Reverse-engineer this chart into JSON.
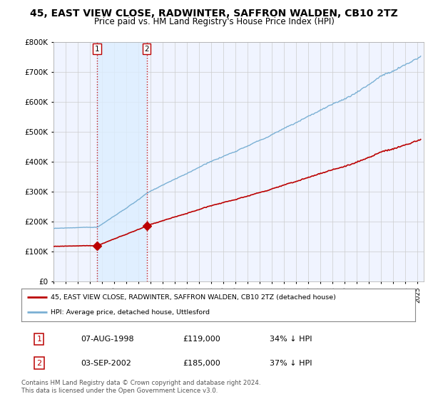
{
  "title": "45, EAST VIEW CLOSE, RADWINTER, SAFFRON WALDEN, CB10 2TZ",
  "subtitle": "Price paid vs. HM Land Registry's House Price Index (HPI)",
  "ylim": [
    0,
    800000
  ],
  "yticks": [
    0,
    100000,
    200000,
    300000,
    400000,
    500000,
    600000,
    700000,
    800000
  ],
  "ytick_labels": [
    "£0",
    "£100K",
    "£200K",
    "£300K",
    "£400K",
    "£500K",
    "£600K",
    "£700K",
    "£800K"
  ],
  "xlim_start": 1995.0,
  "xlim_end": 2025.5,
  "sale1_date": 1998.58,
  "sale1_price": 119000,
  "sale2_date": 2002.67,
  "sale2_price": 185000,
  "property_color": "#bb0000",
  "hpi_color": "#7ab0d4",
  "shade_color": "#ddeeff",
  "background_color": "#f0f4ff",
  "legend_text1": "45, EAST VIEW CLOSE, RADWINTER, SAFFRON WALDEN, CB10 2TZ (detached house)",
  "legend_text2": "HPI: Average price, detached house, Uttlesford",
  "table_row1": [
    "1",
    "07-AUG-1998",
    "£119,000",
    "34% ↓ HPI"
  ],
  "table_row2": [
    "2",
    "03-SEP-2002",
    "£185,000",
    "37% ↓ HPI"
  ],
  "footnote": "Contains HM Land Registry data © Crown copyright and database right 2024.\nThis data is licensed under the Open Government Licence v3.0.",
  "title_fontsize": 10,
  "subtitle_fontsize": 8.5
}
